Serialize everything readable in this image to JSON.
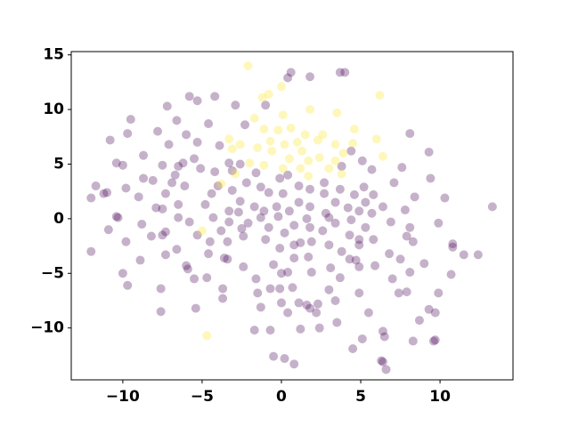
{
  "chart_data": {
    "type": "scatter",
    "xlim": [
      -13.25,
      14.6
    ],
    "ylim": [
      -14.75,
      15.3
    ],
    "xticks": [
      {
        "value": -10,
        "label": "−10"
      },
      {
        "value": -5,
        "label": "−5"
      },
      0,
      5,
      10
    ],
    "yticks": [
      {
        "value": -10,
        "label": "−10"
      },
      {
        "value": -5,
        "label": "−5"
      },
      0,
      5,
      10,
      15
    ],
    "series": [
      {
        "color": "#440154",
        "x": [
          0.6,
          3.7,
          4.0,
          1.8,
          0.4,
          -5.8,
          -4.2,
          -5.3,
          -2.9,
          -7.2,
          -1.0,
          -9.5,
          -6.6,
          -4.6,
          -2.3,
          -9.7,
          -7.8,
          -6.0,
          8.1,
          -10.8,
          -7.1,
          -5.3,
          -3.9,
          -5.5,
          -8.7,
          4.4,
          9.3,
          5.1,
          -3.3,
          -10.4,
          -10.0,
          -7.5,
          -6.2,
          -6.5,
          -2.6,
          7.6,
          -5.1,
          -4.2,
          -3.1,
          -6.7,
          -1.6,
          -0.1,
          0.4,
          3.8,
          5.7,
          -8.7,
          -8.1,
          -6.9,
          -2.2,
          1.1,
          2.7,
          7.1,
          9.4,
          -11.7,
          -9.8,
          -6.1,
          -4.0,
          -3.1,
          -1.3,
          1.8,
          3.7,
          5.2,
          -11.2,
          -11.0,
          -7.3,
          -4.4,
          -0.8,
          0.1,
          2.7,
          4.6,
          5.8,
          8.4,
          10.3,
          -12.0,
          -9.0,
          -2.6,
          1.1,
          3.4,
          5.3,
          -6.5,
          -4.8,
          -1.7,
          -0.3,
          1.8,
          4.2,
          6.4,
          -7.9,
          -7.5,
          13.3,
          -3.3,
          -2.7,
          -1.1,
          0.5,
          2.8,
          4.9,
          5.7,
          7.8,
          -10.4,
          -10.3,
          -6.5,
          -4.3,
          -1.3,
          -0.2,
          1.6,
          3.0,
          4.4,
          -5.8,
          -3.3,
          -2.1,
          0.8,
          3.4,
          6.9,
          9.9,
          -8.8,
          -10.9,
          -2.5,
          -0.8,
          1.8,
          5.3,
          8.1,
          -7.3,
          -3.8,
          0.2,
          2.6,
          4.3,
          -5.3,
          -8.2,
          -7.5,
          -2.4,
          7.9,
          4.9,
          -1.0,
          5.8,
          -9.8,
          -4.5,
          -3.4,
          1.2,
          1.9,
          0.8,
          3.0,
          4.9,
          8.3,
          10.8,
          10.8,
          -6.6,
          -0.1,
          3.8,
          6.8,
          -12.0,
          -7.3,
          -3.6,
          -3.4,
          0.8,
          1.7,
          4.3,
          4.7,
          7.5,
          9.0,
          11.5,
          12.4,
          -8.9,
          -4.6,
          -6.0,
          -5.9,
          -2.4,
          -0.5,
          3.1,
          4.9,
          5.9,
          -10.0,
          0.0,
          0.4,
          1.9,
          8.1,
          10.7,
          -4.7,
          -5.5,
          -1.6,
          3.7,
          7.0,
          -9.7,
          -3.7,
          -0.7,
          -0.1,
          0.7,
          3.0,
          -7.6,
          -1.5,
          4.9,
          7.4,
          7.9,
          9.9,
          -3.7,
          1.1,
          0.0,
          1.6,
          2.3,
          3.4,
          -1.3,
          1.8,
          -5.4,
          -7.6,
          5.5,
          9.3,
          9.7,
          0.4,
          2.2,
          8.7,
          3.5,
          -1.7,
          -0.7,
          1.2,
          2.4,
          6.4,
          6.5,
          5.1,
          8.3,
          9.6,
          9.7,
          4.5,
          -0.5,
          0.2,
          0.8,
          6.3,
          6.4,
          6.6
        ],
        "values": [
          13.4,
          13.4,
          13.4,
          13.0,
          12.9,
          11.2,
          11.2,
          10.8,
          10.4,
          10.3,
          10.4,
          9.1,
          9.0,
          8.7,
          8.6,
          7.8,
          8.0,
          7.7,
          7.8,
          7.2,
          6.8,
          7.0,
          6.7,
          5.5,
          5.8,
          6.2,
          6.1,
          5.3,
          5.1,
          5.1,
          4.9,
          4.9,
          5.1,
          4.8,
          5.0,
          4.7,
          4.6,
          4.3,
          4.4,
          4.0,
          4.2,
          3.7,
          4.0,
          4.8,
          4.5,
          3.7,
          3.5,
          3.3,
          3.3,
          3.0,
          3.3,
          3.3,
          3.7,
          3.0,
          2.8,
          3.0,
          3.0,
          2.6,
          2.9,
          2.7,
          2.7,
          2.9,
          2.3,
          2.4,
          2.3,
          2.3,
          2.4,
          2.3,
          2.3,
          2.2,
          2.2,
          2.0,
          1.9,
          1.9,
          2.0,
          1.6,
          1.5,
          1.5,
          1.5,
          1.3,
          1.3,
          1.1,
          1.1,
          1.1,
          1.0,
          1.1,
          1.0,
          0.9,
          1.1,
          0.7,
          0.6,
          0.7,
          0.7,
          0.5,
          0.7,
          0.5,
          0.8,
          0.2,
          0.1,
          0.1,
          0.1,
          0.1,
          0.2,
          0.0,
          0.1,
          -0.1,
          -0.3,
          -0.3,
          -0.4,
          -0.6,
          -0.4,
          -0.3,
          -0.4,
          -0.5,
          -1.0,
          -0.9,
          -0.8,
          -0.8,
          -0.8,
          -0.8,
          -1.2,
          -1.1,
          -1.3,
          -1.1,
          -1.5,
          -1.5,
          -1.6,
          -1.5,
          -1.6,
          -1.6,
          -1.9,
          -1.9,
          -1.9,
          -2.1,
          -2.1,
          -2.1,
          -2.2,
          -2.1,
          -2.4,
          -2.4,
          -2.4,
          -2.1,
          -2.3,
          -2.6,
          -2.8,
          -2.7,
          -3.0,
          -3.2,
          -3.0,
          -3.3,
          -3.6,
          -3.7,
          -3.6,
          -3.5,
          -3.7,
          -3.8,
          -3.7,
          -4.1,
          -3.3,
          -3.3,
          -3.8,
          -3.2,
          -4.3,
          -4.6,
          -4.4,
          -4.2,
          -4.5,
          -4.4,
          -4.3,
          -5.0,
          -5.0,
          -4.9,
          -4.9,
          -4.9,
          -5.1,
          -5.4,
          -5.5,
          -5.5,
          -5.4,
          -5.5,
          -6.1,
          -6.4,
          -6.4,
          -6.4,
          -6.3,
          -6.5,
          -6.4,
          -6.8,
          -6.8,
          -6.8,
          -6.7,
          -6.8,
          -7.3,
          -7.7,
          -7.7,
          -7.9,
          -7.8,
          -7.5,
          -8.1,
          -8.2,
          -8.2,
          -8.5,
          -8.6,
          -8.3,
          -8.6,
          -8.6,
          -8.6,
          -9.3,
          -9.5,
          -10.2,
          -10.2,
          -10.1,
          -10.0,
          -10.3,
          -10.8,
          -11.0,
          -11.2,
          -11.2,
          -11.1,
          -11.9,
          -12.6,
          -12.8,
          -13.3,
          -13.0,
          -13.1,
          -13.8
        ]
      },
      {
        "color": "#fde725",
        "x": [
          -2.1,
          0.0,
          -0.8,
          -1.2,
          6.2,
          1.8,
          -1.7,
          0.1,
          3.5,
          -1.1,
          -0.2,
          0.6,
          -3.3,
          -0.7,
          1.5,
          2.6,
          4.6,
          -2.6,
          -1.5,
          0.2,
          1.0,
          2.3,
          3.4,
          4.5,
          6.0,
          -3.1,
          -0.6,
          1.3,
          3.9,
          6.4,
          -2.0,
          -1.1,
          0.5,
          1.7,
          2.4,
          3.4,
          0.1,
          1.2,
          3.0,
          3.8,
          1.7,
          -3.8,
          -5.0,
          -4.7,
          -2.9
        ],
        "values": [
          14.0,
          12.1,
          11.4,
          11.1,
          11.3,
          10.0,
          9.2,
          9.5,
          9.7,
          8.2,
          8.1,
          8.3,
          7.3,
          7.1,
          7.7,
          7.7,
          8.2,
          6.8,
          6.5,
          6.8,
          7.0,
          7.2,
          6.8,
          6.9,
          7.3,
          6.4,
          6.2,
          6.2,
          6.0,
          5.7,
          5.1,
          4.9,
          5.5,
          5.3,
          5.6,
          5.3,
          4.6,
          4.6,
          4.6,
          4.1,
          3.9,
          3.2,
          -1.1,
          -10.7,
          4.1
        ]
      }
    ]
  }
}
